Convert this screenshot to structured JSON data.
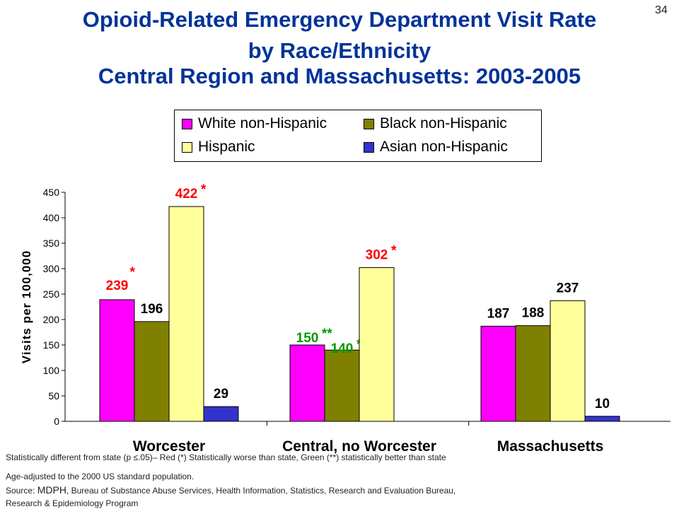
{
  "slide_number": "34",
  "title": {
    "line1": "Opioid-Related Emergency Department Visit Rate",
    "line2": "by Race/Ethnicity",
    "line3": "Central Region and Massachusetts: 2003-2005"
  },
  "colors": {
    "white_non_hispanic": "#ff00ff",
    "black_non_hispanic": "#808000",
    "hispanic": "#ffff99",
    "asian_non_hispanic": "#3333cc",
    "worse_than_state": "#ff0000",
    "better_than_state": "#009900",
    "title": "#003399"
  },
  "chart_data": {
    "type": "bar",
    "title": "",
    "xlabel": "",
    "ylabel": "Visits per 100,000",
    "ylim": [
      0,
      450
    ],
    "yticks": [
      "0",
      "50",
      "100",
      "150",
      "200",
      "250",
      "300",
      "350",
      "400",
      "450"
    ],
    "grid": false,
    "legend_position": "top",
    "categories": [
      "Worcester",
      "Central, no Worcester",
      "Massachusetts"
    ],
    "series": [
      {
        "name": "White non-Hispanic",
        "values": [
          239,
          150,
          187
        ],
        "labels": [
          "239",
          "150",
          "187"
        ],
        "marks": [
          "*",
          "**",
          ""
        ],
        "label_status": [
          "worse",
          "better",
          "none"
        ]
      },
      {
        "name": "Black non-Hispanic",
        "values": [
          196,
          140,
          188
        ],
        "labels": [
          "196",
          "140",
          "188"
        ],
        "marks": [
          "",
          "**",
          ""
        ],
        "label_status": [
          "none",
          "better",
          "none"
        ]
      },
      {
        "name": "Hispanic",
        "values": [
          422,
          302,
          237
        ],
        "labels": [
          "422",
          "302",
          "237"
        ],
        "marks": [
          "*",
          "*",
          ""
        ],
        "label_status": [
          "worse",
          "worse",
          "none"
        ]
      },
      {
        "name": "Asian non-Hispanic",
        "values": [
          29,
          0,
          10
        ],
        "labels": [
          "29",
          "",
          "10"
        ],
        "marks": [
          "",
          "",
          ""
        ],
        "label_status": [
          "none",
          "none",
          "none"
        ]
      }
    ]
  },
  "footnotes": {
    "significance": "Statistically different from state (p ≤.05)–  Red (*) Statistically worse than state, Green (**) statistically better than state",
    "age_adjusted": "Age-adjusted to the 2000 US standard population.",
    "source_prefix": "Source: ",
    "source_agency": "MDPH",
    "source_rest": ", Bureau of Substance Abuse Services, Health Information, Statistics, Research and Evaluation Bureau,",
    "source_line2": "Research & Epidemiology Program"
  }
}
